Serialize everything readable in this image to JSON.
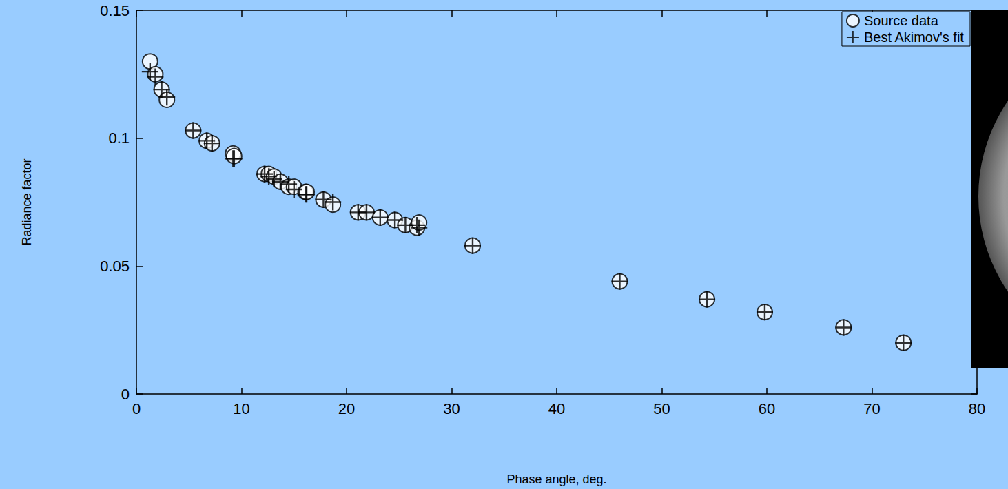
{
  "chart_data": {
    "type": "scatter",
    "x_label": "Phase angle, deg.",
    "y_label": "Radiance factor",
    "x": [
      1.3,
      1.8,
      2.4,
      2.9,
      5.4,
      6.7,
      7.2,
      9.2,
      9.3,
      12.2,
      12.6,
      13.1,
      13.7,
      14.5,
      15.0,
      16.1,
      16.2,
      17.8,
      18.7,
      21.1,
      21.9,
      23.2,
      24.6,
      25.6,
      26.7,
      26.9,
      32.0,
      46.0,
      54.3,
      59.8,
      67.3,
      73.0
    ],
    "series": [
      {
        "name": "Source data",
        "color": "#000000",
        "marker": "circle",
        "values": [
          0.13,
          0.125,
          0.119,
          0.115,
          0.103,
          0.099,
          0.098,
          0.094,
          0.093,
          0.086,
          0.086,
          0.085,
          0.083,
          0.081,
          0.081,
          0.079,
          0.079,
          0.076,
          0.074,
          0.071,
          0.071,
          0.069,
          0.068,
          0.066,
          0.065,
          0.067,
          0.058,
          0.044,
          0.037,
          0.032,
          0.026,
          0.02
        ]
      },
      {
        "name": "Best Akimov's fit",
        "color": "#000000",
        "marker": "plus",
        "values": [
          0.126,
          0.124,
          0.119,
          0.116,
          0.103,
          0.099,
          0.098,
          0.092,
          0.092,
          0.086,
          0.085,
          0.084,
          0.083,
          0.082,
          0.08,
          0.078,
          0.078,
          0.076,
          0.075,
          0.071,
          0.071,
          0.069,
          0.068,
          0.066,
          0.066,
          0.065,
          0.058,
          0.044,
          0.037,
          0.032,
          0.026,
          0.02
        ]
      }
    ],
    "xlim": [
      0,
      80
    ],
    "xticks": [
      0,
      10,
      20,
      30,
      40,
      50,
      60,
      70,
      80
    ],
    "ylim": [
      0,
      0.15
    ],
    "yticks": [
      0,
      0.05,
      0.1,
      0.15
    ],
    "grid": false,
    "legend": "upper right"
  }
}
